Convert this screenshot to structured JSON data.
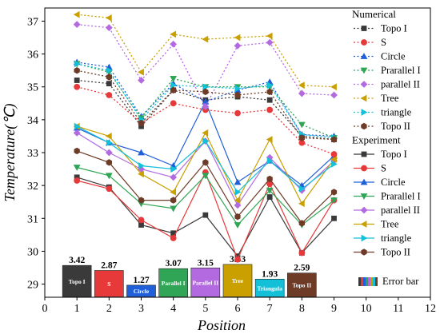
{
  "chart_data": {
    "type": "line",
    "xlabel": "Position",
    "ylabel": "Temperature(℃)",
    "xlim": [
      0,
      12
    ],
    "ylim": [
      28.6,
      37.4
    ],
    "x_ticks": [
      0,
      1,
      2,
      3,
      4,
      5,
      6,
      7,
      8,
      9,
      10,
      11,
      12
    ],
    "y_ticks": [
      29,
      30,
      31,
      32,
      33,
      34,
      35,
      36,
      37
    ],
    "x": [
      1,
      2,
      3,
      4,
      5,
      6,
      7,
      8,
      9
    ],
    "legend_position": "right",
    "numerical_title": "Numerical",
    "experiment_title": "Experiment",
    "numerical": [
      {
        "name": "Topo I",
        "color": "#3a3a3a",
        "marker": "square",
        "values": [
          35.2,
          35.1,
          33.8,
          34.9,
          34.6,
          34.7,
          34.6,
          33.5,
          33.4
        ]
      },
      {
        "name": "S",
        "color": "#e8393a",
        "marker": "circle",
        "values": [
          35.0,
          34.75,
          33.9,
          34.5,
          34.3,
          34.2,
          34.3,
          33.3,
          32.95
        ]
      },
      {
        "name": "Circle",
        "color": "#1f5fd9",
        "marker": "triangle-up",
        "values": [
          35.75,
          35.6,
          34.1,
          35.1,
          34.55,
          34.9,
          35.15,
          33.55,
          33.5
        ]
      },
      {
        "name": "Prarallel I",
        "color": "#2fa555",
        "marker": "triangle-down",
        "values": [
          35.7,
          35.45,
          34.05,
          35.25,
          35.0,
          35.0,
          35.0,
          33.85,
          33.45
        ]
      },
      {
        "name": "parallel II",
        "color": "#b36ae0",
        "marker": "diamond",
        "values": [
          36.9,
          36.8,
          35.2,
          36.3,
          34.4,
          36.25,
          36.35,
          34.8,
          34.75
        ]
      },
      {
        "name": "Tree",
        "color": "#c9a000",
        "marker": "triangle-left",
        "values": [
          37.2,
          37.1,
          35.45,
          36.6,
          36.45,
          36.5,
          36.55,
          35.05,
          35.0
        ]
      },
      {
        "name": "triangle",
        "color": "#14c0d8",
        "marker": "triangle-right",
        "values": [
          35.7,
          35.5,
          34.0,
          35.05,
          35.0,
          34.95,
          35.05,
          33.55,
          33.45
        ]
      },
      {
        "name": "Topo II",
        "color": "#6e3b26",
        "marker": "hexagon",
        "values": [
          35.5,
          35.3,
          33.9,
          34.9,
          34.85,
          34.75,
          34.85,
          33.45,
          33.4
        ]
      }
    ],
    "experiment": [
      {
        "name": "Topo I",
        "color": "#3a3a3a",
        "marker": "square",
        "values": [
          32.25,
          31.95,
          30.8,
          30.55,
          31.1,
          29.85,
          31.65,
          29.95,
          31.0
        ]
      },
      {
        "name": "S",
        "color": "#e8393a",
        "marker": "circle",
        "values": [
          32.15,
          31.9,
          30.95,
          30.4,
          32.4,
          29.75,
          32.05,
          29.95,
          31.55
        ]
      },
      {
        "name": "Circle",
        "color": "#1f5fd9",
        "marker": "triangle-up",
        "values": [
          33.75,
          33.3,
          33.0,
          32.6,
          34.55,
          32.1,
          32.75,
          32.0,
          32.9
        ]
      },
      {
        "name": "Prarallel I",
        "color": "#2fa555",
        "marker": "triangle-down",
        "values": [
          32.55,
          32.3,
          31.45,
          31.3,
          32.3,
          30.8,
          31.85,
          30.8,
          31.55
        ]
      },
      {
        "name": "parallel II",
        "color": "#b36ae0",
        "marker": "diamond",
        "values": [
          33.6,
          33.0,
          32.5,
          32.25,
          33.35,
          31.4,
          32.85,
          31.85,
          32.75
        ]
      },
      {
        "name": "Tree",
        "color": "#c9a000",
        "marker": "triangle-left",
        "values": [
          33.8,
          33.5,
          32.35,
          31.8,
          33.6,
          31.55,
          33.4,
          31.45,
          32.8
        ]
      },
      {
        "name": "triangle",
        "color": "#14c0d8",
        "marker": "triangle-right",
        "values": [
          33.8,
          33.3,
          32.6,
          32.5,
          33.35,
          31.8,
          32.75,
          31.9,
          32.65
        ]
      },
      {
        "name": "Topo II",
        "color": "#6e3b26",
        "marker": "hexagon",
        "values": [
          33.05,
          32.7,
          31.55,
          31.55,
          32.7,
          31.05,
          32.2,
          30.85,
          31.8
        ]
      }
    ],
    "error_bars": {
      "legend_label": "Error bar",
      "baseline": 28.6,
      "items": [
        {
          "x": 1,
          "label": "Topo I",
          "value": "3.42",
          "value_num": 3.42,
          "color": "#3a3a3a"
        },
        {
          "x": 2,
          "label": "S",
          "value": "2.87",
          "value_num": 2.87,
          "color": "#e8393a"
        },
        {
          "x": 3,
          "label": "Circle",
          "value": "1.27",
          "value_num": 1.27,
          "color": "#1f5fd9"
        },
        {
          "x": 4,
          "label": "Parallel I",
          "value": "3.07",
          "value_num": 3.07,
          "color": "#2fa555"
        },
        {
          "x": 5,
          "label": "Parallel II",
          "value": "3.15",
          "value_num": 3.15,
          "color": "#b36ae0"
        },
        {
          "x": 6,
          "label": "Tree",
          "value": "3.53",
          "value_num": 3.53,
          "color": "#c9a000"
        },
        {
          "x": 7,
          "label": "Triangula",
          "value": "1.93",
          "value_num": 1.93,
          "color": "#14c0d8"
        },
        {
          "x": 8,
          "label": "Topo II",
          "value": "2.59",
          "value_num": 2.59,
          "color": "#6e3b26"
        }
      ]
    }
  }
}
